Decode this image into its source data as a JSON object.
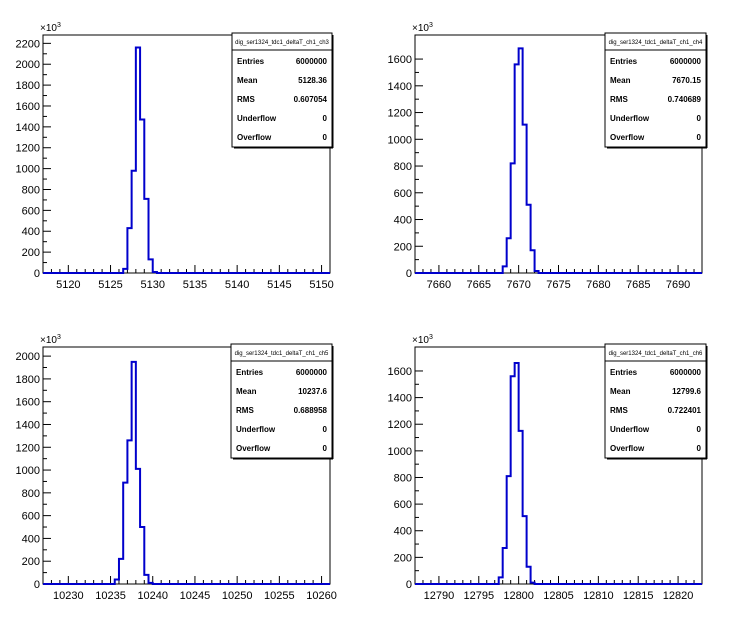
{
  "chart_data": [
    {
      "type": "bar",
      "y_multiplier": "×10",
      "y_multiplier_exp": "3",
      "xlim": [
        5117,
        5151
      ],
      "ylim": [
        0,
        2280
      ],
      "xticks": [
        5120,
        5125,
        5130,
        5135,
        5140,
        5145,
        5150
      ],
      "yticks": [
        0,
        200,
        400,
        600,
        800,
        1000,
        1200,
        1400,
        1600,
        1800,
        2000,
        2200
      ],
      "bin_width": 0.5,
      "bins_start": 5126.5,
      "values": [
        40,
        430,
        980,
        2160,
        1470,
        710,
        130,
        10
      ],
      "stats": {
        "title": "dig_ser1324_tdc1_deltaT_ch1_ch3",
        "rows": [
          {
            "label": "Entries",
            "value": "6000000"
          },
          {
            "label": "Mean",
            "value": "5128.36"
          },
          {
            "label": "RMS",
            "value": "0.607054"
          },
          {
            "label": "Underflow",
            "value": "0"
          },
          {
            "label": "Overflow",
            "value": "0"
          }
        ]
      }
    },
    {
      "type": "bar",
      "y_multiplier": "×10",
      "y_multiplier_exp": "3",
      "xlim": [
        7657,
        7693
      ],
      "ylim": [
        0,
        1780
      ],
      "xticks": [
        7660,
        7665,
        7670,
        7675,
        7680,
        7685,
        7690
      ],
      "yticks": [
        0,
        200,
        400,
        600,
        800,
        1000,
        1200,
        1400,
        1600
      ],
      "bin_width": 0.5,
      "bins_start": 7668.0,
      "values": [
        50,
        260,
        820,
        1560,
        1680,
        1110,
        510,
        170,
        15
      ],
      "stats": {
        "title": "dig_ser1324_tdc1_deltaT_ch1_ch4",
        "rows": [
          {
            "label": "Entries",
            "value": "6000000"
          },
          {
            "label": "Mean",
            "value": "7670.15"
          },
          {
            "label": "RMS",
            "value": "0.740689"
          },
          {
            "label": "Underflow",
            "value": "0"
          },
          {
            "label": "Overflow",
            "value": "0"
          }
        ]
      }
    },
    {
      "type": "bar",
      "y_multiplier": "×10",
      "y_multiplier_exp": "3",
      "xlim": [
        10227,
        10261
      ],
      "ylim": [
        0,
        2080
      ],
      "xticks": [
        10230,
        10235,
        10240,
        10245,
        10250,
        10255,
        10260
      ],
      "yticks": [
        0,
        200,
        400,
        600,
        800,
        1000,
        1200,
        1400,
        1600,
        1800,
        2000
      ],
      "bin_width": 0.5,
      "bins_start": 10235.5,
      "values": [
        40,
        220,
        890,
        1260,
        1950,
        1010,
        500,
        80,
        10
      ],
      "stats": {
        "title": "dig_ser1324_tdc1_deltaT_ch1_ch5",
        "rows": [
          {
            "label": "Entries",
            "value": "6000000"
          },
          {
            "label": "Mean",
            "value": "10237.6"
          },
          {
            "label": "RMS",
            "value": "0.688958"
          },
          {
            "label": "Underflow",
            "value": "0"
          },
          {
            "label": "Overflow",
            "value": "0"
          }
        ]
      }
    },
    {
      "type": "bar",
      "y_multiplier": "×10",
      "y_multiplier_exp": "3",
      "xlim": [
        12787,
        12823
      ],
      "ylim": [
        0,
        1780
      ],
      "xticks": [
        12790,
        12795,
        12800,
        12805,
        12810,
        12815,
        12820
      ],
      "yticks": [
        0,
        200,
        400,
        600,
        800,
        1000,
        1200,
        1400,
        1600
      ],
      "bin_width": 0.5,
      "bins_start": 12797.5,
      "values": [
        50,
        270,
        810,
        1560,
        1660,
        1150,
        510,
        130,
        10
      ],
      "stats": {
        "title": "dig_ser1324_tdc1_deltaT_ch1_ch6",
        "rows": [
          {
            "label": "Entries",
            "value": "6000000"
          },
          {
            "label": "Mean",
            "value": "12799.6"
          },
          {
            "label": "RMS",
            "value": "0.722401"
          },
          {
            "label": "Underflow",
            "value": "0"
          },
          {
            "label": "Overflow",
            "value": "0"
          }
        ]
      }
    }
  ]
}
